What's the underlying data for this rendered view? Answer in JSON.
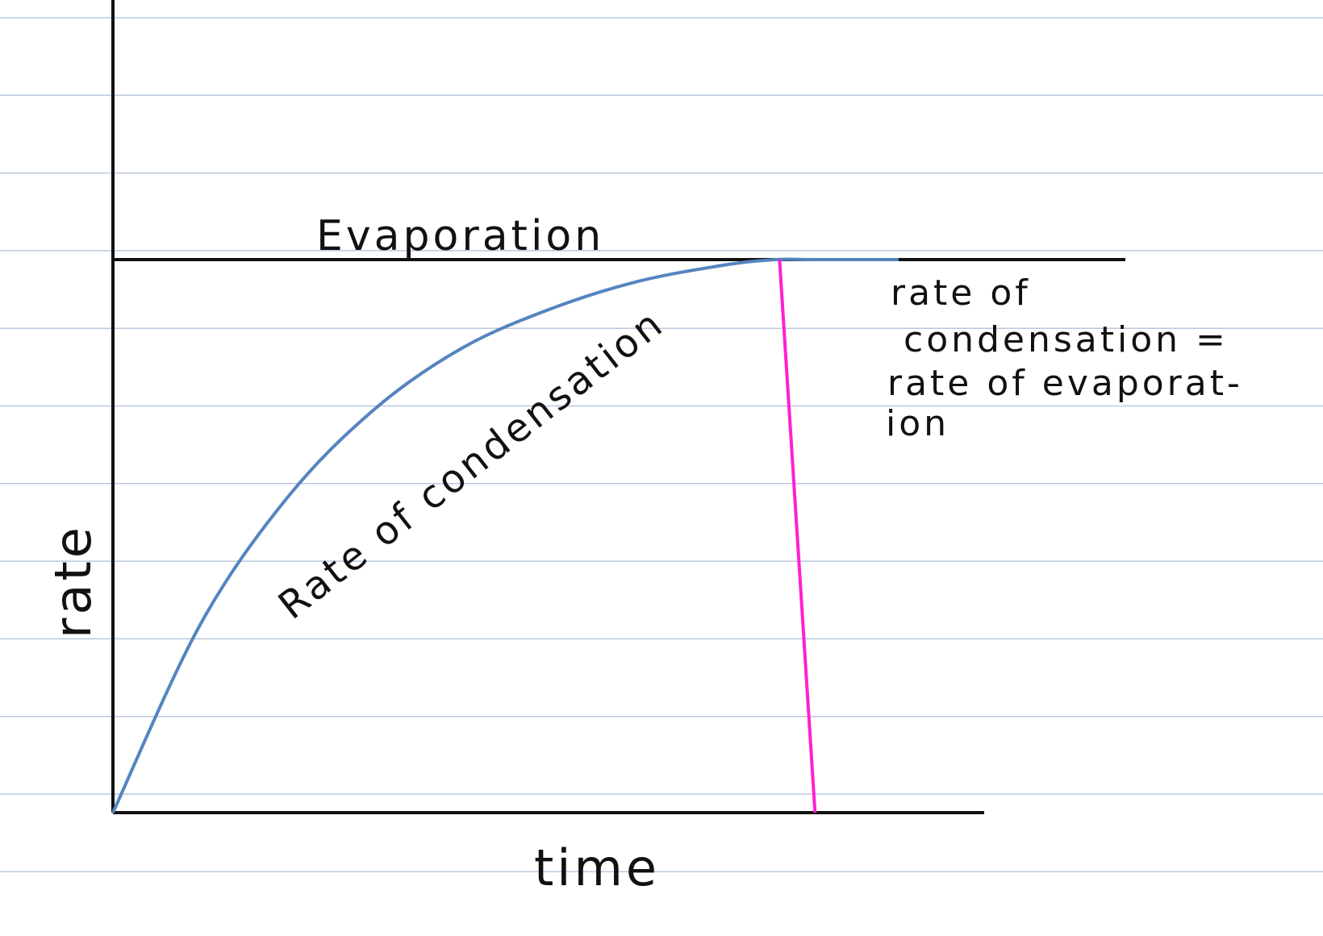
{
  "colors": {
    "paper": "#ffffff",
    "rule_line": "#b9c8dc",
    "axes": "#111111",
    "condensation_curve": "#5584c0",
    "equilibrium_marker": "#ff1fd0"
  },
  "chart_data": {
    "type": "line",
    "xlabel": "time",
    "ylabel": "rate",
    "xlim": [
      0,
      10
    ],
    "ylim": [
      0,
      10
    ],
    "grid": false,
    "series": [
      {
        "name": "Evaporation",
        "x": [
          0,
          10
        ],
        "y": [
          10,
          10
        ]
      },
      {
        "name": "Rate of condensation",
        "x": [
          0,
          1,
          2,
          3,
          4,
          5,
          6,
          7,
          7.6,
          8,
          9
        ],
        "y": [
          0,
          3.4,
          5.7,
          7.3,
          8.4,
          9.1,
          9.6,
          9.9,
          10,
          10,
          10
        ]
      }
    ],
    "annotations": [
      {
        "lines": [
          "rate of",
          "condensation =",
          "rate of evaporat-",
          "ion"
        ],
        "at_x": 7.6
      }
    ]
  }
}
